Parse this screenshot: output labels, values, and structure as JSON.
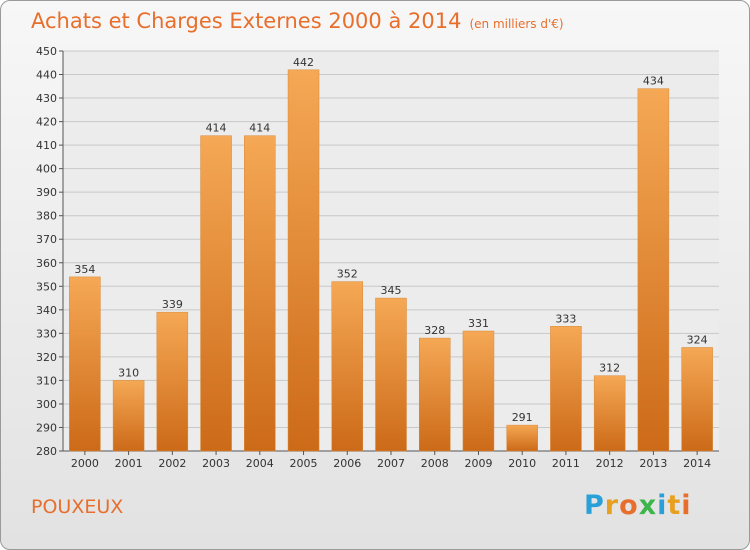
{
  "header": {
    "title": "Achats et Charges Externes 2000 à 2014",
    "subtitle": "(en milliers d'€)"
  },
  "footer": {
    "commune": "POUXEUX",
    "logo_text": "Proxiti"
  },
  "colors": {
    "accent": "#e86e2c",
    "bar_light": "#f5a855",
    "bar_dark": "#cc6a18",
    "logo_letters": [
      "#2aa0d8",
      "#e8a020",
      "#e86e2c",
      "#3cb54a",
      "#2aa0d8",
      "#e8a020",
      "#e86e2c"
    ]
  },
  "chart_data": {
    "type": "bar",
    "title": "Achats et Charges Externes 2000 à 2014",
    "subtitle": "(en milliers d'€)",
    "categories": [
      "2000",
      "2001",
      "2002",
      "2003",
      "2004",
      "2005",
      "2006",
      "2007",
      "2008",
      "2009",
      "2010",
      "2011",
      "2012",
      "2013",
      "2014"
    ],
    "values": [
      354,
      310,
      339,
      414,
      414,
      442,
      352,
      345,
      328,
      331,
      291,
      333,
      312,
      434,
      324
    ],
    "ylim": [
      280,
      450
    ],
    "ytick_step": 10,
    "grid": true,
    "legend": "none"
  }
}
